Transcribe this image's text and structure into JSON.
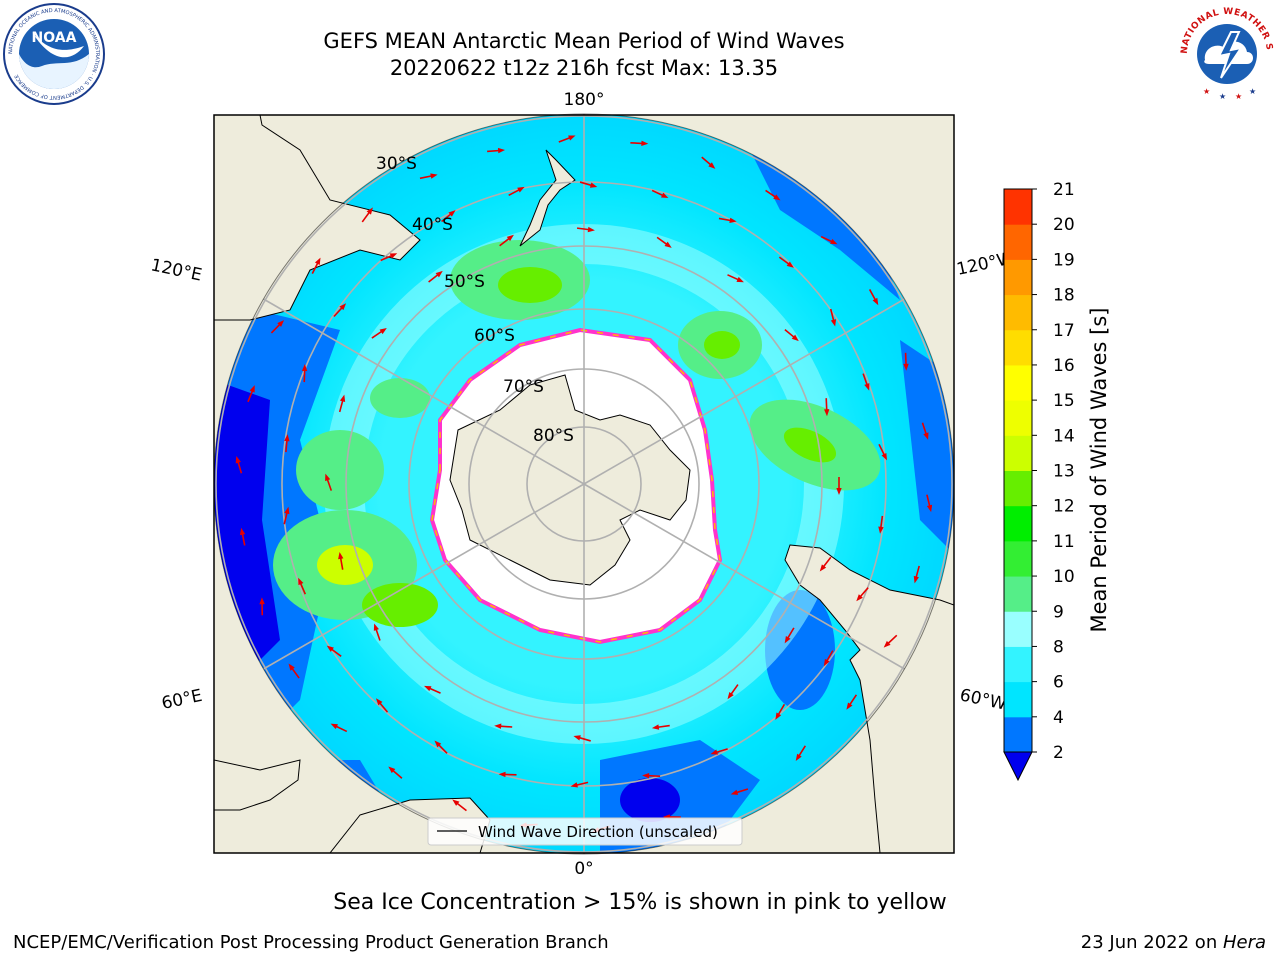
{
  "header": {
    "title_line1": "GEFS MEAN Antarctic Mean Period of Wind Waves",
    "title_line2": "20220622 t12z 216h fcst   Max: 13.35"
  },
  "logos": {
    "left": "NOAA",
    "left_ring_text": "NATIONAL OCEANIC AND ATMOSPHERIC ADMINISTRATION · U.S. DEPARTMENT OF COMMERCE",
    "right_ring_text": "NATIONAL WEATHER SERVICE"
  },
  "map": {
    "projection": "south-polar-stereographic",
    "longitude_labels": {
      "top": "180°",
      "bottom": "0°",
      "upper_left": "120°E",
      "upper_right": "120°W",
      "lower_left": "60°E",
      "lower_right": "60°W"
    },
    "latitude_labels": [
      "30°S",
      "40°S",
      "50°S",
      "60°S",
      "70°S",
      "80°S"
    ],
    "legend_label": "Wind Wave Direction (unscaled)",
    "colors": {
      "land": "#eeecdc",
      "ice": "#ffffff",
      "ice_edge": "#ff33cc",
      "arrows": "#e60000",
      "grid": "#b0b0b0"
    }
  },
  "colorbar": {
    "label": "Mean Period of Wind Waves [s]",
    "ticks": [
      "2",
      "4",
      "6",
      "8",
      "9",
      "10",
      "11",
      "12",
      "13",
      "14",
      "15",
      "16",
      "17",
      "18",
      "19",
      "20",
      "21"
    ],
    "colors": [
      "#0077ff",
      "#00e5ff",
      "#33f3ff",
      "#99ffff",
      "#55ee88",
      "#33ee33",
      "#00ee00",
      "#66ee00",
      "#ccff00",
      "#eeff00",
      "#ffff00",
      "#ffdd00",
      "#ffbb00",
      "#ff9900",
      "#ff6600",
      "#ff3300"
    ],
    "under_color": "#0000ee"
  },
  "footer": {
    "note": "Sea Ice Concentration > 15% is shown in pink to yellow",
    "credit": "NCEP/EMC/Verification Post Processing Product Generation Branch",
    "date": "23 Jun 2022 on ",
    "machine": "Hera"
  }
}
